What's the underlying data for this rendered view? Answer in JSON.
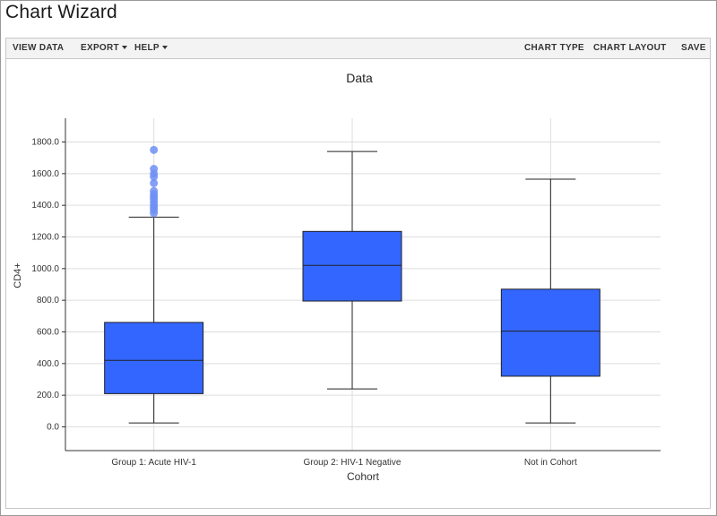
{
  "app": {
    "title": "Chart Wizard"
  },
  "toolbar": {
    "view_data": "VIEW DATA",
    "export": "EXPORT",
    "help": "HELP",
    "chart_type": "CHART TYPE",
    "chart_layout": "CHART LAYOUT",
    "save": "SAVE"
  },
  "colors": {
    "box_fill": "#3366ff",
    "outlier": "#6f8ff5",
    "grid": "#dddddd",
    "axis": "#333333"
  },
  "chart_data": {
    "type": "box",
    "title": "Data",
    "xlabel": "Cohort",
    "ylabel": "CD4+",
    "ylim": [
      -150,
      1950
    ],
    "yticks": [
      0,
      200,
      400,
      600,
      800,
      1000,
      1200,
      1400,
      1600,
      1800
    ],
    "ytick_labels": [
      "0.0",
      "200.0",
      "400.0",
      "600.0",
      "800.0",
      "1000.0",
      "1200.0",
      "1400.0",
      "1600.0",
      "1800.0"
    ],
    "grid": true,
    "categories": [
      "Group 1: Acute HIV-1",
      "Group 2: HIV-1 Negative",
      "Not in Cohort"
    ],
    "boxes": [
      {
        "min": 25,
        "q1": 210,
        "median": 420,
        "q3": 660,
        "max": 1325,
        "outliers": [
          1350,
          1370,
          1385,
          1400,
          1420,
          1440,
          1455,
          1470,
          1490,
          1540,
          1580,
          1600,
          1630,
          1750
        ]
      },
      {
        "min": 240,
        "q1": 795,
        "median": 1020,
        "q3": 1235,
        "max": 1740,
        "outliers": []
      },
      {
        "min": 25,
        "q1": 320,
        "median": 605,
        "q3": 870,
        "max": 1565,
        "outliers": []
      }
    ]
  }
}
